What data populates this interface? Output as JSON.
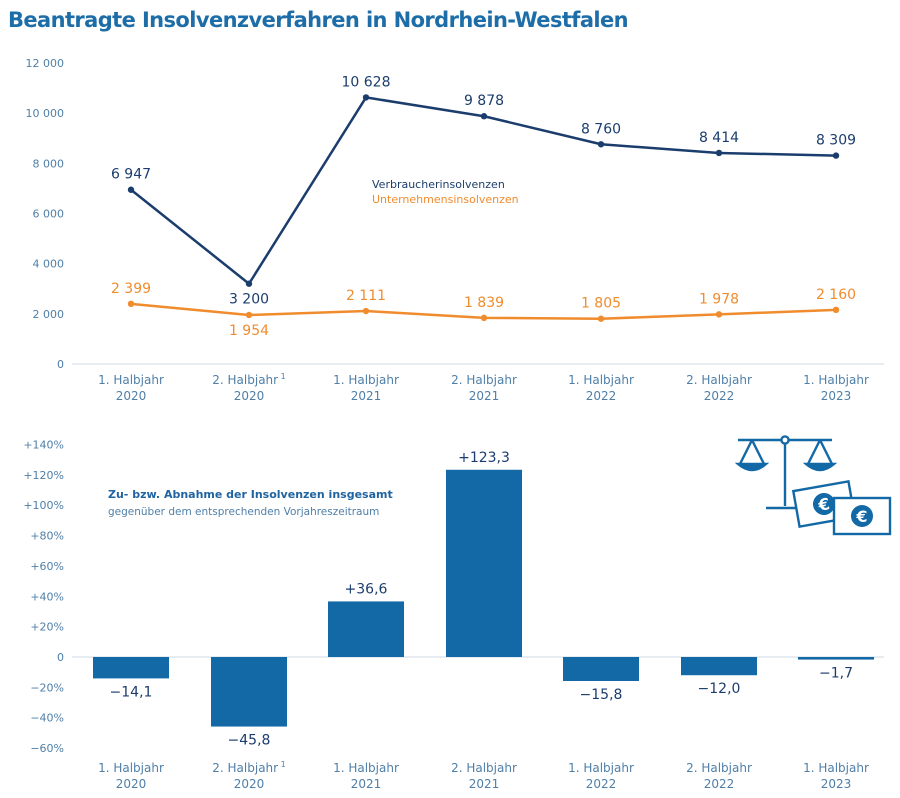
{
  "page": {
    "title": "Beantragte Insolvenzverfahren in Nordrhein-Westfalen"
  },
  "chart_data": [
    {
      "type": "line",
      "categories": [
        [
          "1. Halbjahr",
          "2020"
        ],
        [
          "2. Halbjahr",
          "2020"
        ],
        [
          "1. Halbjahr",
          "2021"
        ],
        [
          "2. Halbjahr",
          "2021"
        ],
        [
          "1. Halbjahr",
          "2022"
        ],
        [
          "2. Halbjahr",
          "2022"
        ],
        [
          "1. Halbjahr",
          "2023"
        ]
      ],
      "category_footnotes": [
        "",
        "1",
        "",
        "",
        "",
        "",
        ""
      ],
      "ylim": [
        0,
        12000
      ],
      "yticks": [
        0,
        2000,
        4000,
        6000,
        8000,
        10000,
        12000
      ],
      "ytick_labels": [
        "0",
        "2 000",
        "4 000",
        "6 000",
        "8 000",
        "10 000",
        "12 000"
      ],
      "grid": false,
      "legend_position": "center",
      "series": [
        {
          "name": "Verbraucherinsolvenzen",
          "color": "#1b3d6d",
          "values": [
            6947,
            3200,
            10628,
            9878,
            8760,
            8414,
            8309
          ],
          "labels": [
            "6 947",
            "3 200",
            "10 628",
            "9 878",
            "8 760",
            "8 414",
            "8 309"
          ],
          "label_side": [
            "above",
            "below",
            "above",
            "above",
            "above",
            "above",
            "above"
          ]
        },
        {
          "name": "Unternehmensinsolvenzen",
          "color": "#f08c2e",
          "values": [
            2399,
            1954,
            2111,
            1839,
            1805,
            1978,
            2160
          ],
          "labels": [
            "2 399",
            "1 954",
            "2 111",
            "1 839",
            "1 805",
            "1 978",
            "2 160"
          ],
          "label_side": [
            "above",
            "below",
            "above",
            "above",
            "above",
            "above",
            "above"
          ]
        }
      ]
    },
    {
      "type": "bar",
      "title": "Zu- bzw. Abnahme der Insolvenzen insgesamt",
      "subtitle": "gegenüber dem entsprechenden Vorjahreszeitraum",
      "categories": [
        [
          "1. Halbjahr",
          "2020"
        ],
        [
          "2. Halbjahr",
          "2020"
        ],
        [
          "1. Halbjahr",
          "2021"
        ],
        [
          "2. Halbjahr",
          "2021"
        ],
        [
          "1. Halbjahr",
          "2022"
        ],
        [
          "2. Halbjahr",
          "2022"
        ],
        [
          "1. Halbjahr",
          "2023"
        ]
      ],
      "category_footnotes": [
        "",
        "1",
        "",
        "",
        "",
        "",
        ""
      ],
      "ylim": [
        -60,
        140
      ],
      "yticks": [
        -60,
        -40,
        -20,
        0,
        20,
        40,
        60,
        80,
        100,
        120,
        140
      ],
      "ytick_labels": [
        "−60%",
        "−40%",
        "−20%",
        "0",
        "+20%",
        "+40%",
        "+60%",
        "+80%",
        "+100%",
        "+120%",
        "+140%"
      ],
      "values": [
        -14.1,
        -45.8,
        36.6,
        123.3,
        -15.8,
        -12.0,
        -1.7
      ],
      "labels": [
        "−14,1",
        "−45,8",
        "+36,6",
        "+123,3",
        "−15,8",
        "−12,0",
        "−1,7"
      ],
      "color": "#1368a6",
      "icon": "scales-with-euro-notes-icon"
    }
  ]
}
